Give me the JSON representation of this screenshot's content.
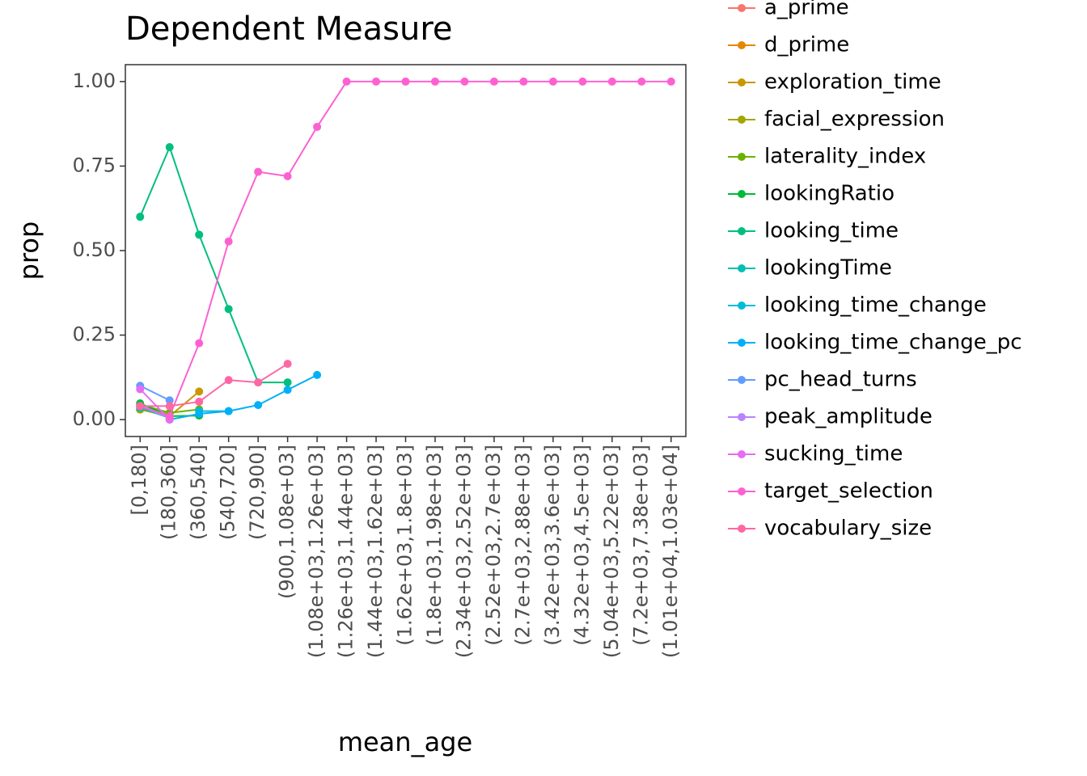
{
  "chart_data": {
    "type": "line",
    "title": "Dependent Measure",
    "x_label": "mean_age",
    "y_label": "prop",
    "categories": [
      "[0,180]",
      "(180,360]",
      "(360,540]",
      "(540,720]",
      "(720,900]",
      "(900,1.08e+03]",
      "(1.08e+03,1.26e+03]",
      "(1.26e+03,1.44e+03]",
      "(1.44e+03,1.62e+03]",
      "(1.62e+03,1.8e+03]",
      "(1.8e+03,1.98e+03]",
      "(2.34e+03,2.52e+03]",
      "(2.52e+03,2.7e+03]",
      "(2.7e+03,2.88e+03]",
      "(3.42e+03,3.6e+03]",
      "(4.32e+03,4.5e+03]",
      "(5.04e+03,5.22e+03]",
      "(7.2e+03,7.38e+03]",
      "(1.01e+04,1.03e+04]"
    ],
    "ylim": [
      -0.05,
      1.05
    ],
    "yticks": [
      {
        "value": 0,
        "label": "0.00"
      },
      {
        "value": 0.25,
        "label": "0.25"
      },
      {
        "value": 0.5,
        "label": "0.50"
      },
      {
        "value": 0.75,
        "label": "0.75"
      },
      {
        "value": 1,
        "label": "1.00"
      }
    ],
    "grid": false,
    "series": [
      {
        "name": "a_prime",
        "color": "#F8766D",
        "values": [
          0.04,
          0.01,
          null,
          null,
          null,
          null,
          null,
          null,
          null,
          null,
          null,
          null,
          null,
          null,
          null,
          null,
          null,
          null,
          null
        ]
      },
      {
        "name": "d_prime",
        "color": "#E58700",
        "values": [
          0.03,
          0.01,
          null,
          null,
          null,
          null,
          null,
          null,
          null,
          null,
          null,
          null,
          null,
          null,
          null,
          null,
          null,
          null,
          null
        ]
      },
      {
        "name": "exploration_time",
        "color": "#C99800",
        "values": [
          0.03,
          0.01,
          0.083,
          null,
          null,
          null,
          null,
          null,
          null,
          null,
          null,
          null,
          null,
          null,
          null,
          null,
          null,
          null,
          null
        ]
      },
      {
        "name": "facial_expression",
        "color": "#A3A500",
        "values": [
          0.03,
          0.02,
          null,
          null,
          null,
          null,
          null,
          null,
          null,
          null,
          null,
          null,
          null,
          null,
          null,
          null,
          null,
          null,
          null
        ]
      },
      {
        "name": "laterality_index",
        "color": "#6BB100",
        "values": [
          0.045,
          0.02,
          0.03,
          null,
          null,
          null,
          null,
          null,
          null,
          null,
          null,
          null,
          null,
          null,
          null,
          null,
          null,
          null,
          null
        ]
      },
      {
        "name": "lookingRatio",
        "color": "#00BA38",
        "values": [
          0.048,
          0.01,
          0.012,
          null,
          null,
          null,
          null,
          null,
          null,
          null,
          null,
          null,
          null,
          null,
          null,
          null,
          null,
          null,
          null
        ]
      },
      {
        "name": "looking_time",
        "color": "#00BF7D",
        "values": [
          0.6,
          0.806,
          0.547,
          0.327,
          0.11,
          0.11,
          null,
          null,
          null,
          null,
          null,
          null,
          null,
          null,
          null,
          null,
          null,
          null,
          null
        ]
      },
      {
        "name": "lookingTime",
        "color": "#00C0AF",
        "values": [
          0.035,
          0.005,
          null,
          null,
          null,
          null,
          null,
          null,
          null,
          null,
          null,
          null,
          null,
          null,
          null,
          null,
          null,
          null,
          null
        ]
      },
      {
        "name": "looking_time_change",
        "color": "#00BCD8",
        "values": [
          null,
          null,
          0.025,
          0.025,
          null,
          null,
          null,
          null,
          null,
          null,
          null,
          null,
          null,
          null,
          null,
          null,
          null,
          null,
          null
        ]
      },
      {
        "name": "looking_time_change_pc",
        "color": "#00B0F6",
        "values": [
          null,
          0.0,
          0.017,
          0.025,
          0.043,
          0.088,
          0.132,
          null,
          null,
          null,
          null,
          null,
          null,
          null,
          null,
          null,
          null,
          null,
          null
        ]
      },
      {
        "name": "pc_head_turns",
        "color": "#619CFF",
        "values": [
          0.1,
          0.057,
          null,
          null,
          null,
          null,
          null,
          null,
          null,
          null,
          null,
          null,
          null,
          null,
          null,
          null,
          null,
          null,
          null
        ]
      },
      {
        "name": "peak_amplitude",
        "color": "#B983FF",
        "values": [
          0.04,
          0.005,
          null,
          null,
          null,
          null,
          null,
          null,
          null,
          null,
          null,
          null,
          null,
          null,
          null,
          null,
          null,
          null,
          null
        ]
      },
      {
        "name": "sucking_time",
        "color": "#E76BF3",
        "values": [
          0.09,
          0.0,
          null,
          null,
          null,
          null,
          null,
          null,
          null,
          null,
          null,
          null,
          null,
          null,
          null,
          null,
          null,
          null,
          null
        ]
      },
      {
        "name": "target_selection",
        "color": "#FD61D1",
        "values": [
          0.04,
          0.01,
          0.226,
          0.527,
          0.733,
          0.72,
          0.866,
          1,
          1,
          1,
          1,
          1,
          1,
          1,
          1,
          1,
          1,
          1,
          1
        ]
      },
      {
        "name": "vocabulary_size",
        "color": "#FF67A4",
        "values": [
          0.04,
          0.04,
          0.053,
          0.117,
          0.11,
          0.165,
          null,
          null,
          null,
          null,
          null,
          null,
          null,
          null,
          null,
          null,
          null,
          null,
          null
        ]
      }
    ]
  }
}
